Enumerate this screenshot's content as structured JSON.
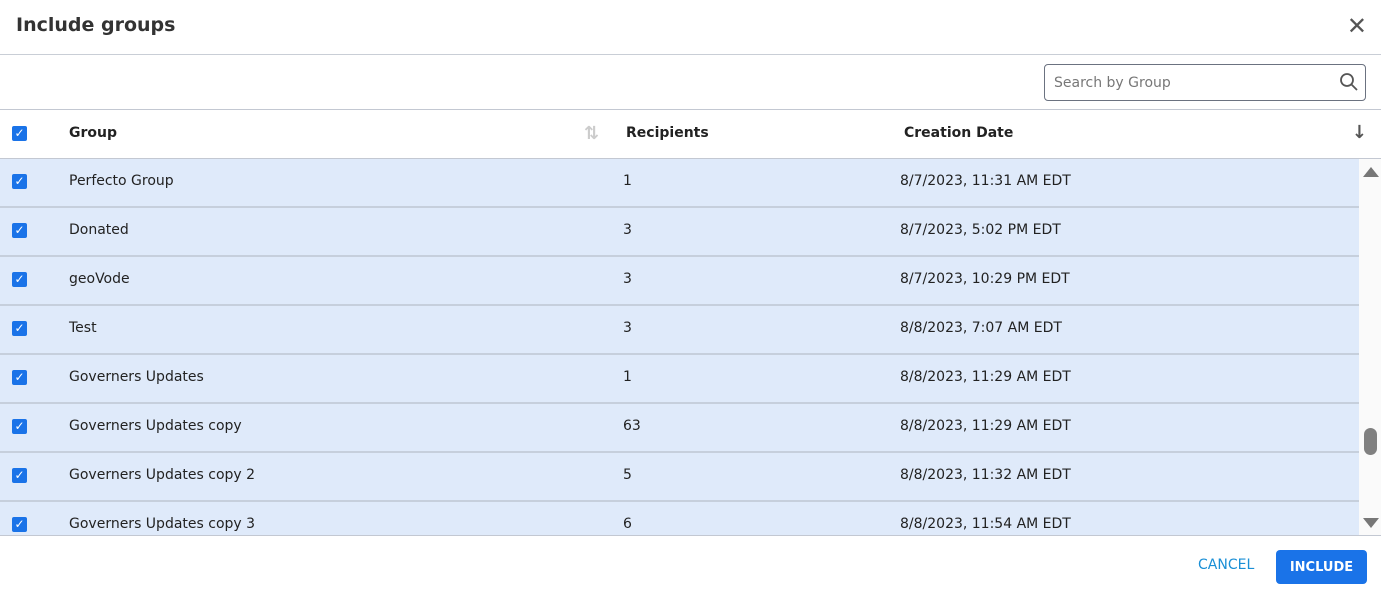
{
  "dialog": {
    "title": "Include groups",
    "close_icon": "close-icon"
  },
  "search": {
    "placeholder": "Search by Group",
    "value": ""
  },
  "table": {
    "columns": {
      "group": "Group",
      "recipients": "Recipients",
      "creation_date": "Creation Date"
    },
    "sort": {
      "column": "Creation Date"
    },
    "select_all_checked": true,
    "rows": [
      {
        "group": "Perfecto Group",
        "recipients": "1",
        "date": "8/7/2023, 11:31 AM EDT",
        "checked": true
      },
      {
        "group": "Donated",
        "recipients": "3",
        "date": "8/7/2023, 5:02 PM EDT",
        "checked": true
      },
      {
        "group": "geoVode",
        "recipients": "3",
        "date": "8/7/2023, 10:29 PM EDT",
        "checked": true
      },
      {
        "group": "Test",
        "recipients": "3",
        "date": "8/8/2023, 7:07 AM EDT",
        "checked": true
      },
      {
        "group": "Governers Updates",
        "recipients": "1",
        "date": "8/8/2023, 11:29 AM EDT",
        "checked": true
      },
      {
        "group": "Governers Updates copy",
        "recipients": "63",
        "date": "8/8/2023, 11:29 AM EDT",
        "checked": true
      },
      {
        "group": "Governers Updates copy 2",
        "recipients": "5",
        "date": "8/8/2023, 11:32 AM EDT",
        "checked": true
      },
      {
        "group": "Governers Updates copy 3",
        "recipients": "6",
        "date": "8/8/2023, 11:54 AM EDT",
        "checked": true
      }
    ]
  },
  "footer": {
    "cancel": "CANCEL",
    "include": "INCLUDE"
  },
  "colors": {
    "accent": "#1a73e8",
    "row_selected": "#dfeafa"
  }
}
